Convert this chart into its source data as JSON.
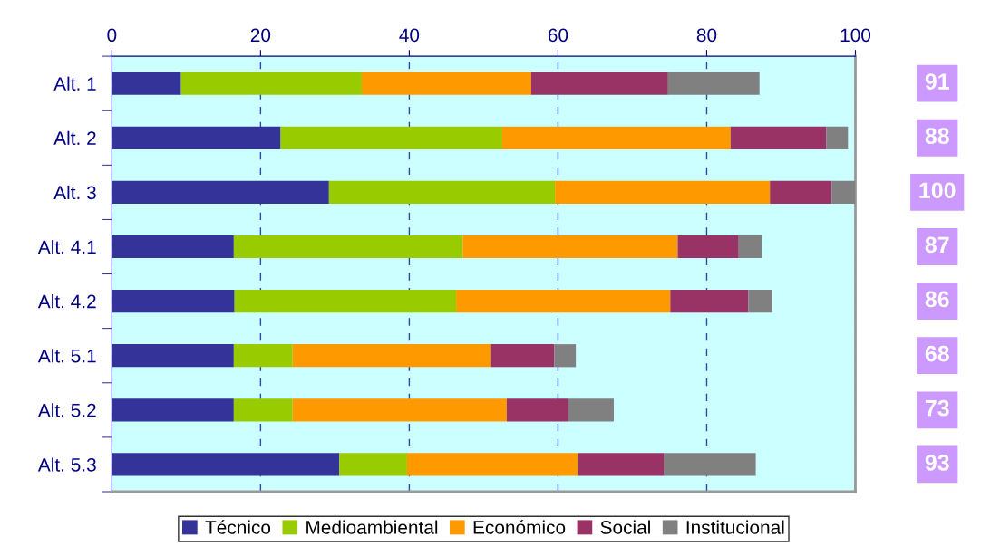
{
  "chart_data": {
    "type": "bar",
    "orientation": "horizontal",
    "stacked": true,
    "categories": [
      "Alt. 1",
      "Alt. 2",
      "Alt. 3",
      "Alt. 4.1",
      "Alt. 4.2",
      "Alt. 5.1",
      "Alt. 5.2",
      "Alt. 5.3"
    ],
    "series": [
      {
        "name": "Técnico",
        "color": "#333399",
        "values": [
          9.3,
          22.7,
          29.2,
          16.4,
          16.5,
          16.4,
          16.4,
          30.6
        ]
      },
      {
        "name": "Medioambiental",
        "color": "#99cc00",
        "values": [
          24.3,
          29.8,
          30.4,
          30.8,
          29.8,
          7.9,
          7.9,
          9.1
        ]
      },
      {
        "name": "Económico",
        "color": "#ff9900",
        "values": [
          22.8,
          30.7,
          28.9,
          28.9,
          28.8,
          26.7,
          28.8,
          23.0
        ]
      },
      {
        "name": "Social",
        "color": "#993366",
        "values": [
          18.4,
          12.9,
          8.3,
          8.2,
          10.5,
          8.5,
          8.3,
          11.6
        ]
      },
      {
        "name": "Institucional",
        "color": "#808080",
        "values": [
          12.3,
          2.9,
          3.2,
          3.1,
          3.2,
          2.9,
          6.1,
          12.3
        ]
      }
    ],
    "xlim": [
      0,
      100
    ],
    "xticks": [
      0,
      20,
      40,
      60,
      80,
      100
    ],
    "grid": "x",
    "legend": "bottom",
    "annotations": [
      "91",
      "88",
      "100",
      "87",
      "86",
      "68",
      "73",
      "93"
    ]
  }
}
